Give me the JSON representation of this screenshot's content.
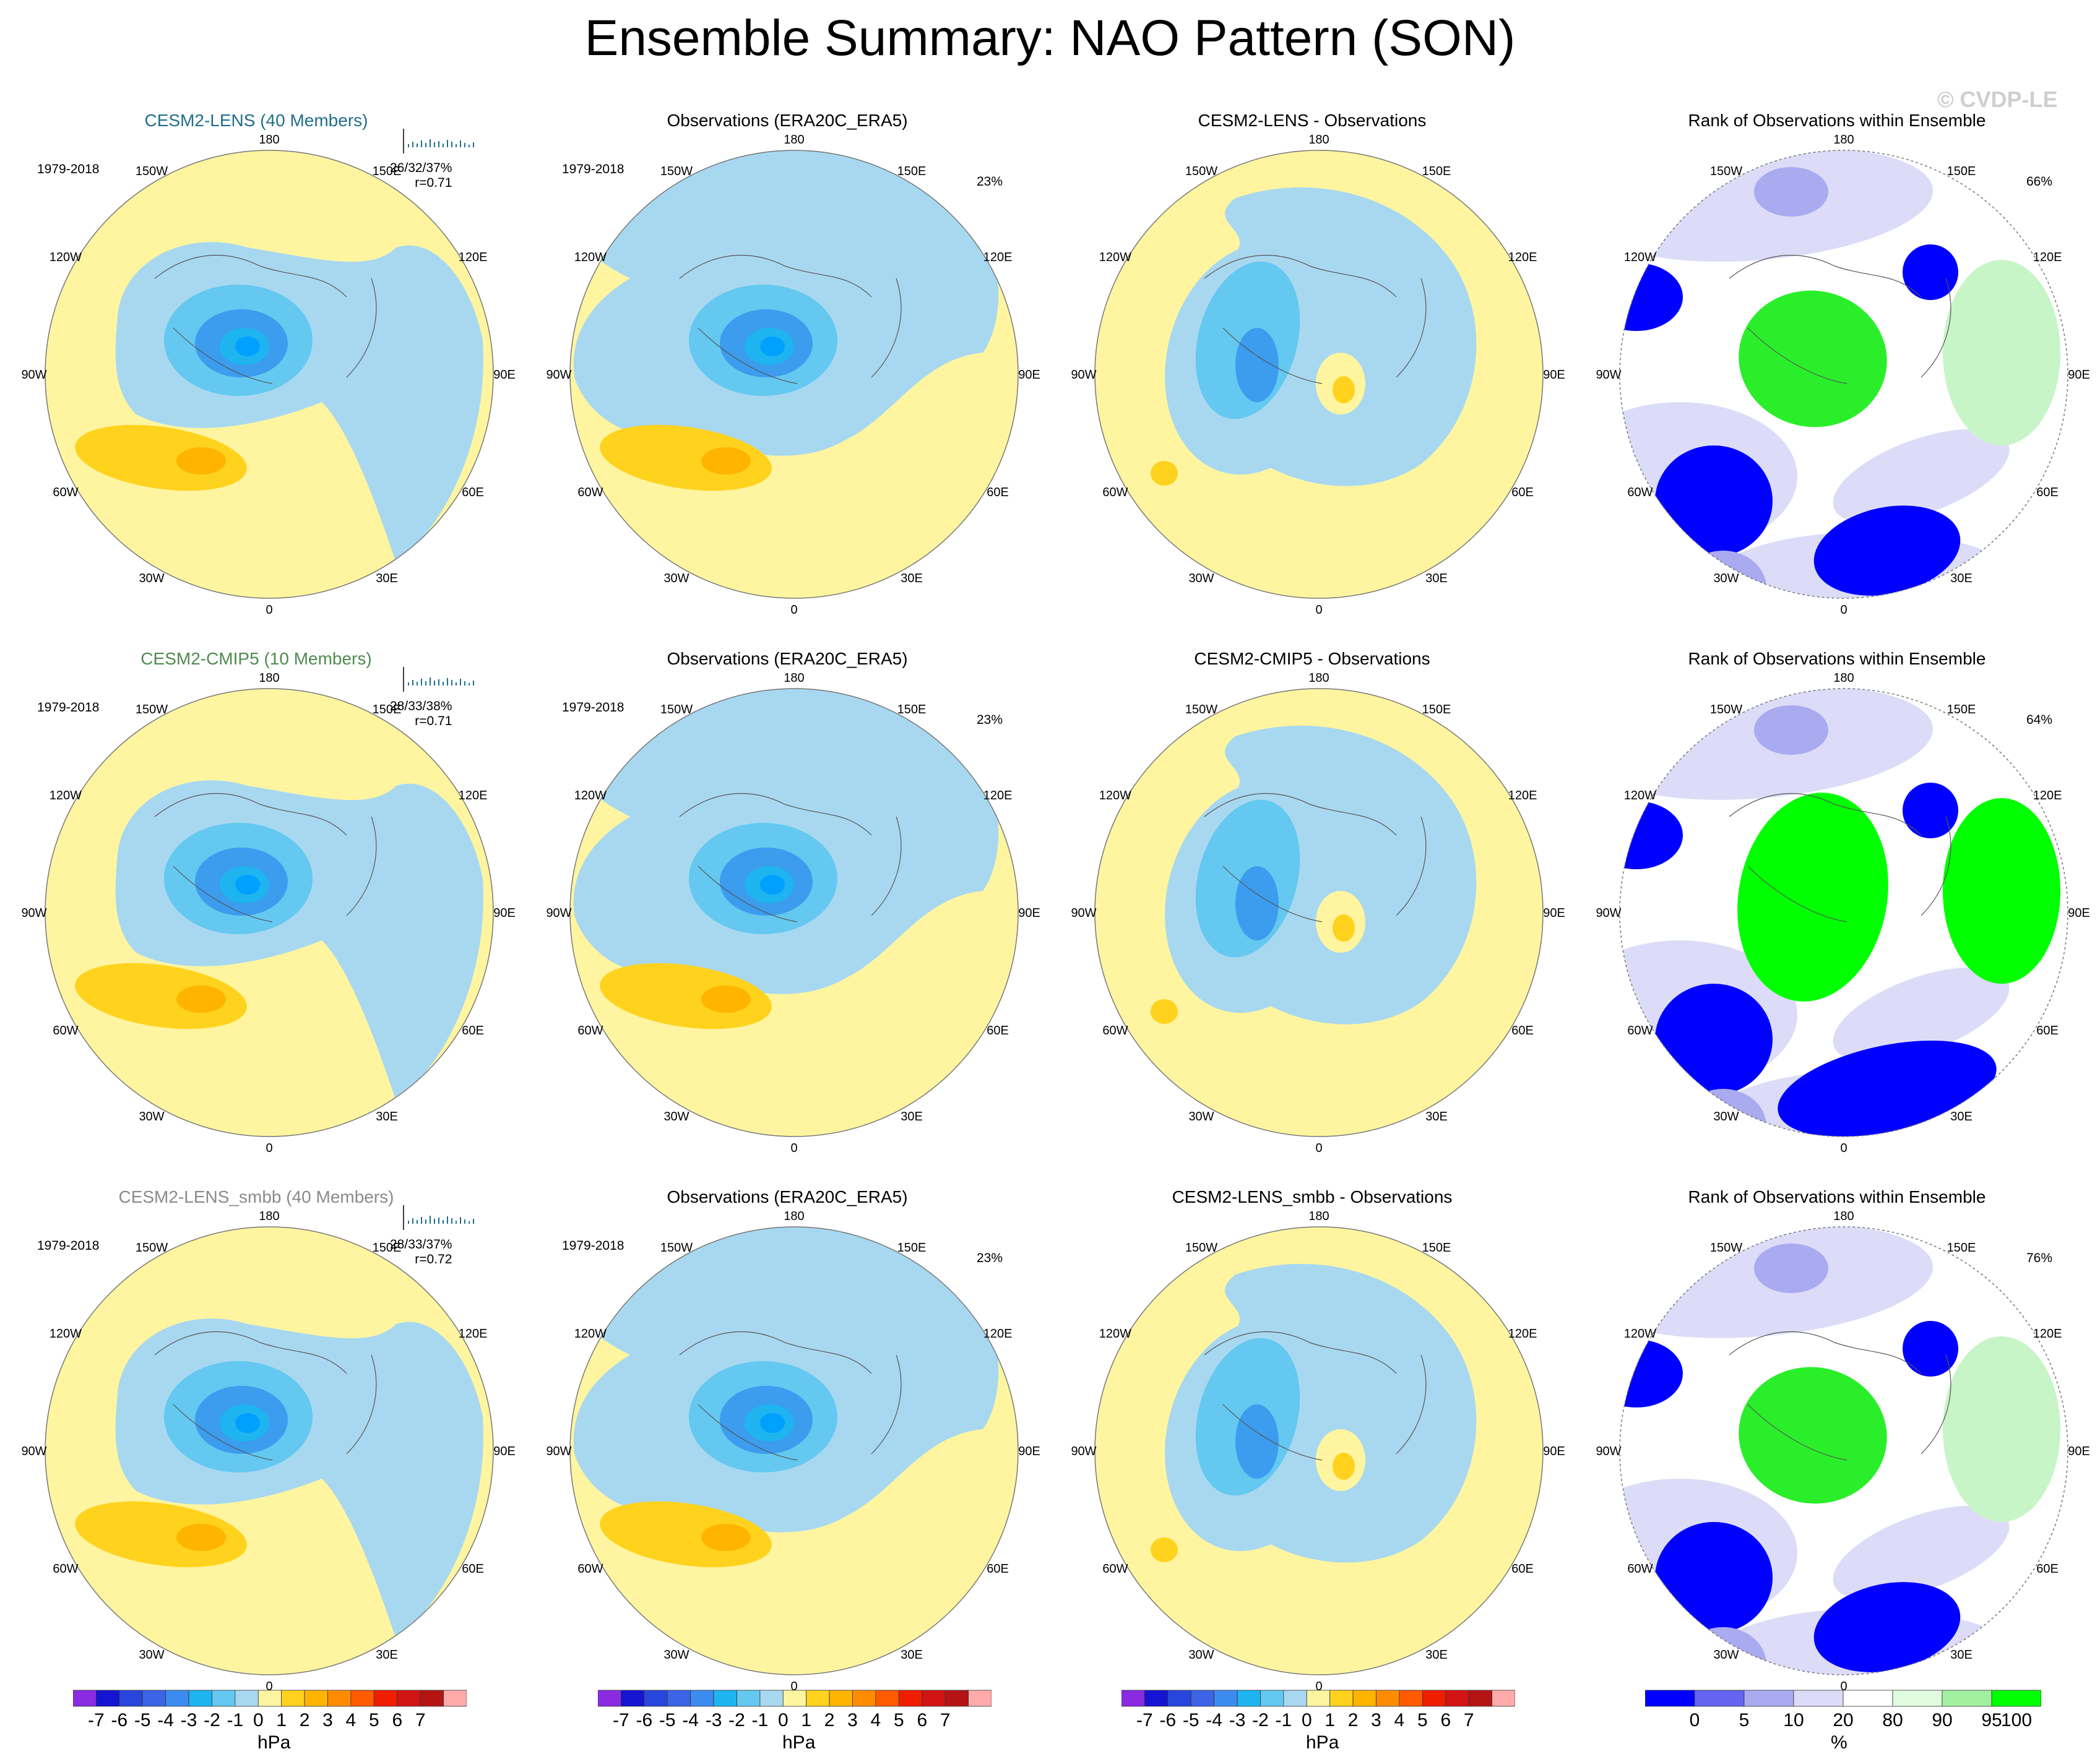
{
  "title": "Ensemble Summary: NAO Pattern (SON)",
  "watermark": "© CVDP-LE",
  "rows": [
    {
      "model": {
        "title": "CESM2-LENS (40 Members)",
        "title_color": "#1f6f8b",
        "period": "1979-2018",
        "stats": "26/32/37%",
        "r": "r=0.71"
      },
      "obs": {
        "title": "Observations (ERA20C_ERA5)",
        "period": "1979-2018",
        "pct": "23%"
      },
      "diff": {
        "title": "CESM2-LENS - Observations"
      },
      "rank": {
        "title": "Rank of Observations within Ensemble",
        "pct": "66%"
      }
    },
    {
      "model": {
        "title": "CESM2-CMIP5 (10 Members)",
        "title_color": "#4f8a4f",
        "period": "1979-2018",
        "stats": "28/33/38%",
        "r": "r=0.71"
      },
      "obs": {
        "title": "Observations (ERA20C_ERA5)",
        "period": "1979-2018",
        "pct": "23%"
      },
      "diff": {
        "title": "CESM2-CMIP5 - Observations"
      },
      "rank": {
        "title": "Rank of Observations within Ensemble",
        "pct": "64%"
      }
    },
    {
      "model": {
        "title": "CESM2-LENS_smbb (40 Members)",
        "title_color": "#8a8a8a",
        "period": "1979-2018",
        "stats": "28/33/37%",
        "r": "r=0.72"
      },
      "obs": {
        "title": "Observations (ERA20C_ERA5)",
        "period": "1979-2018",
        "pct": "23%"
      },
      "diff": {
        "title": "CESM2-LENS_smbb - Observations"
      },
      "rank": {
        "title": "Rank of Observations within Ensemble",
        "pct": "76%"
      }
    }
  ],
  "lon_labels": [
    "180",
    "150E",
    "120E",
    "90E",
    "60E",
    "30E",
    "0",
    "30W",
    "60W",
    "90W",
    "120W",
    "150W"
  ],
  "colorbar_hpa": {
    "labels": [
      "-7",
      "-6",
      "-5",
      "-4",
      "-3",
      "-2",
      "-1",
      "0",
      "1",
      "2",
      "3",
      "4",
      "5",
      "6",
      "7"
    ],
    "unit": "hPa",
    "colors": [
      "#8a2be2",
      "#1414d2",
      "#2846dc",
      "#3c64e6",
      "#3c8cf0",
      "#1eb4f0",
      "#64c8f0",
      "#a8d8f0",
      "#fff5a0",
      "#ffd21e",
      "#ffb400",
      "#ff8c00",
      "#ff5a00",
      "#f01e00",
      "#d21414",
      "#b41414",
      "#ffaaaa"
    ]
  },
  "colorbar_pct": {
    "labels": [
      "0",
      "5",
      "10",
      "20",
      "80",
      "90",
      "95",
      "100"
    ],
    "unit": "%",
    "colors": [
      "#0000ff",
      "#6464f0",
      "#aaaaf0",
      "#dcdcf8",
      "#ffffff",
      "#e0fce0",
      "#a0f0a0",
      "#00ff00"
    ]
  },
  "chart_data": {
    "type": "heatmap",
    "projection": "north polar stereographic",
    "variable": "SLP NAO pattern regression",
    "units": "hPa",
    "contour_levels": [
      -7,
      -6,
      -5,
      -4,
      -3,
      -2,
      -1,
      0,
      1,
      2,
      3,
      4,
      5,
      6,
      7
    ],
    "rank_levels_percent": [
      0,
      5,
      10,
      20,
      80,
      90,
      95,
      100
    ],
    "panels_per_row": [
      "model ensemble mean",
      "observations",
      "model minus observations",
      "rank of observations within ensemble"
    ]
  }
}
